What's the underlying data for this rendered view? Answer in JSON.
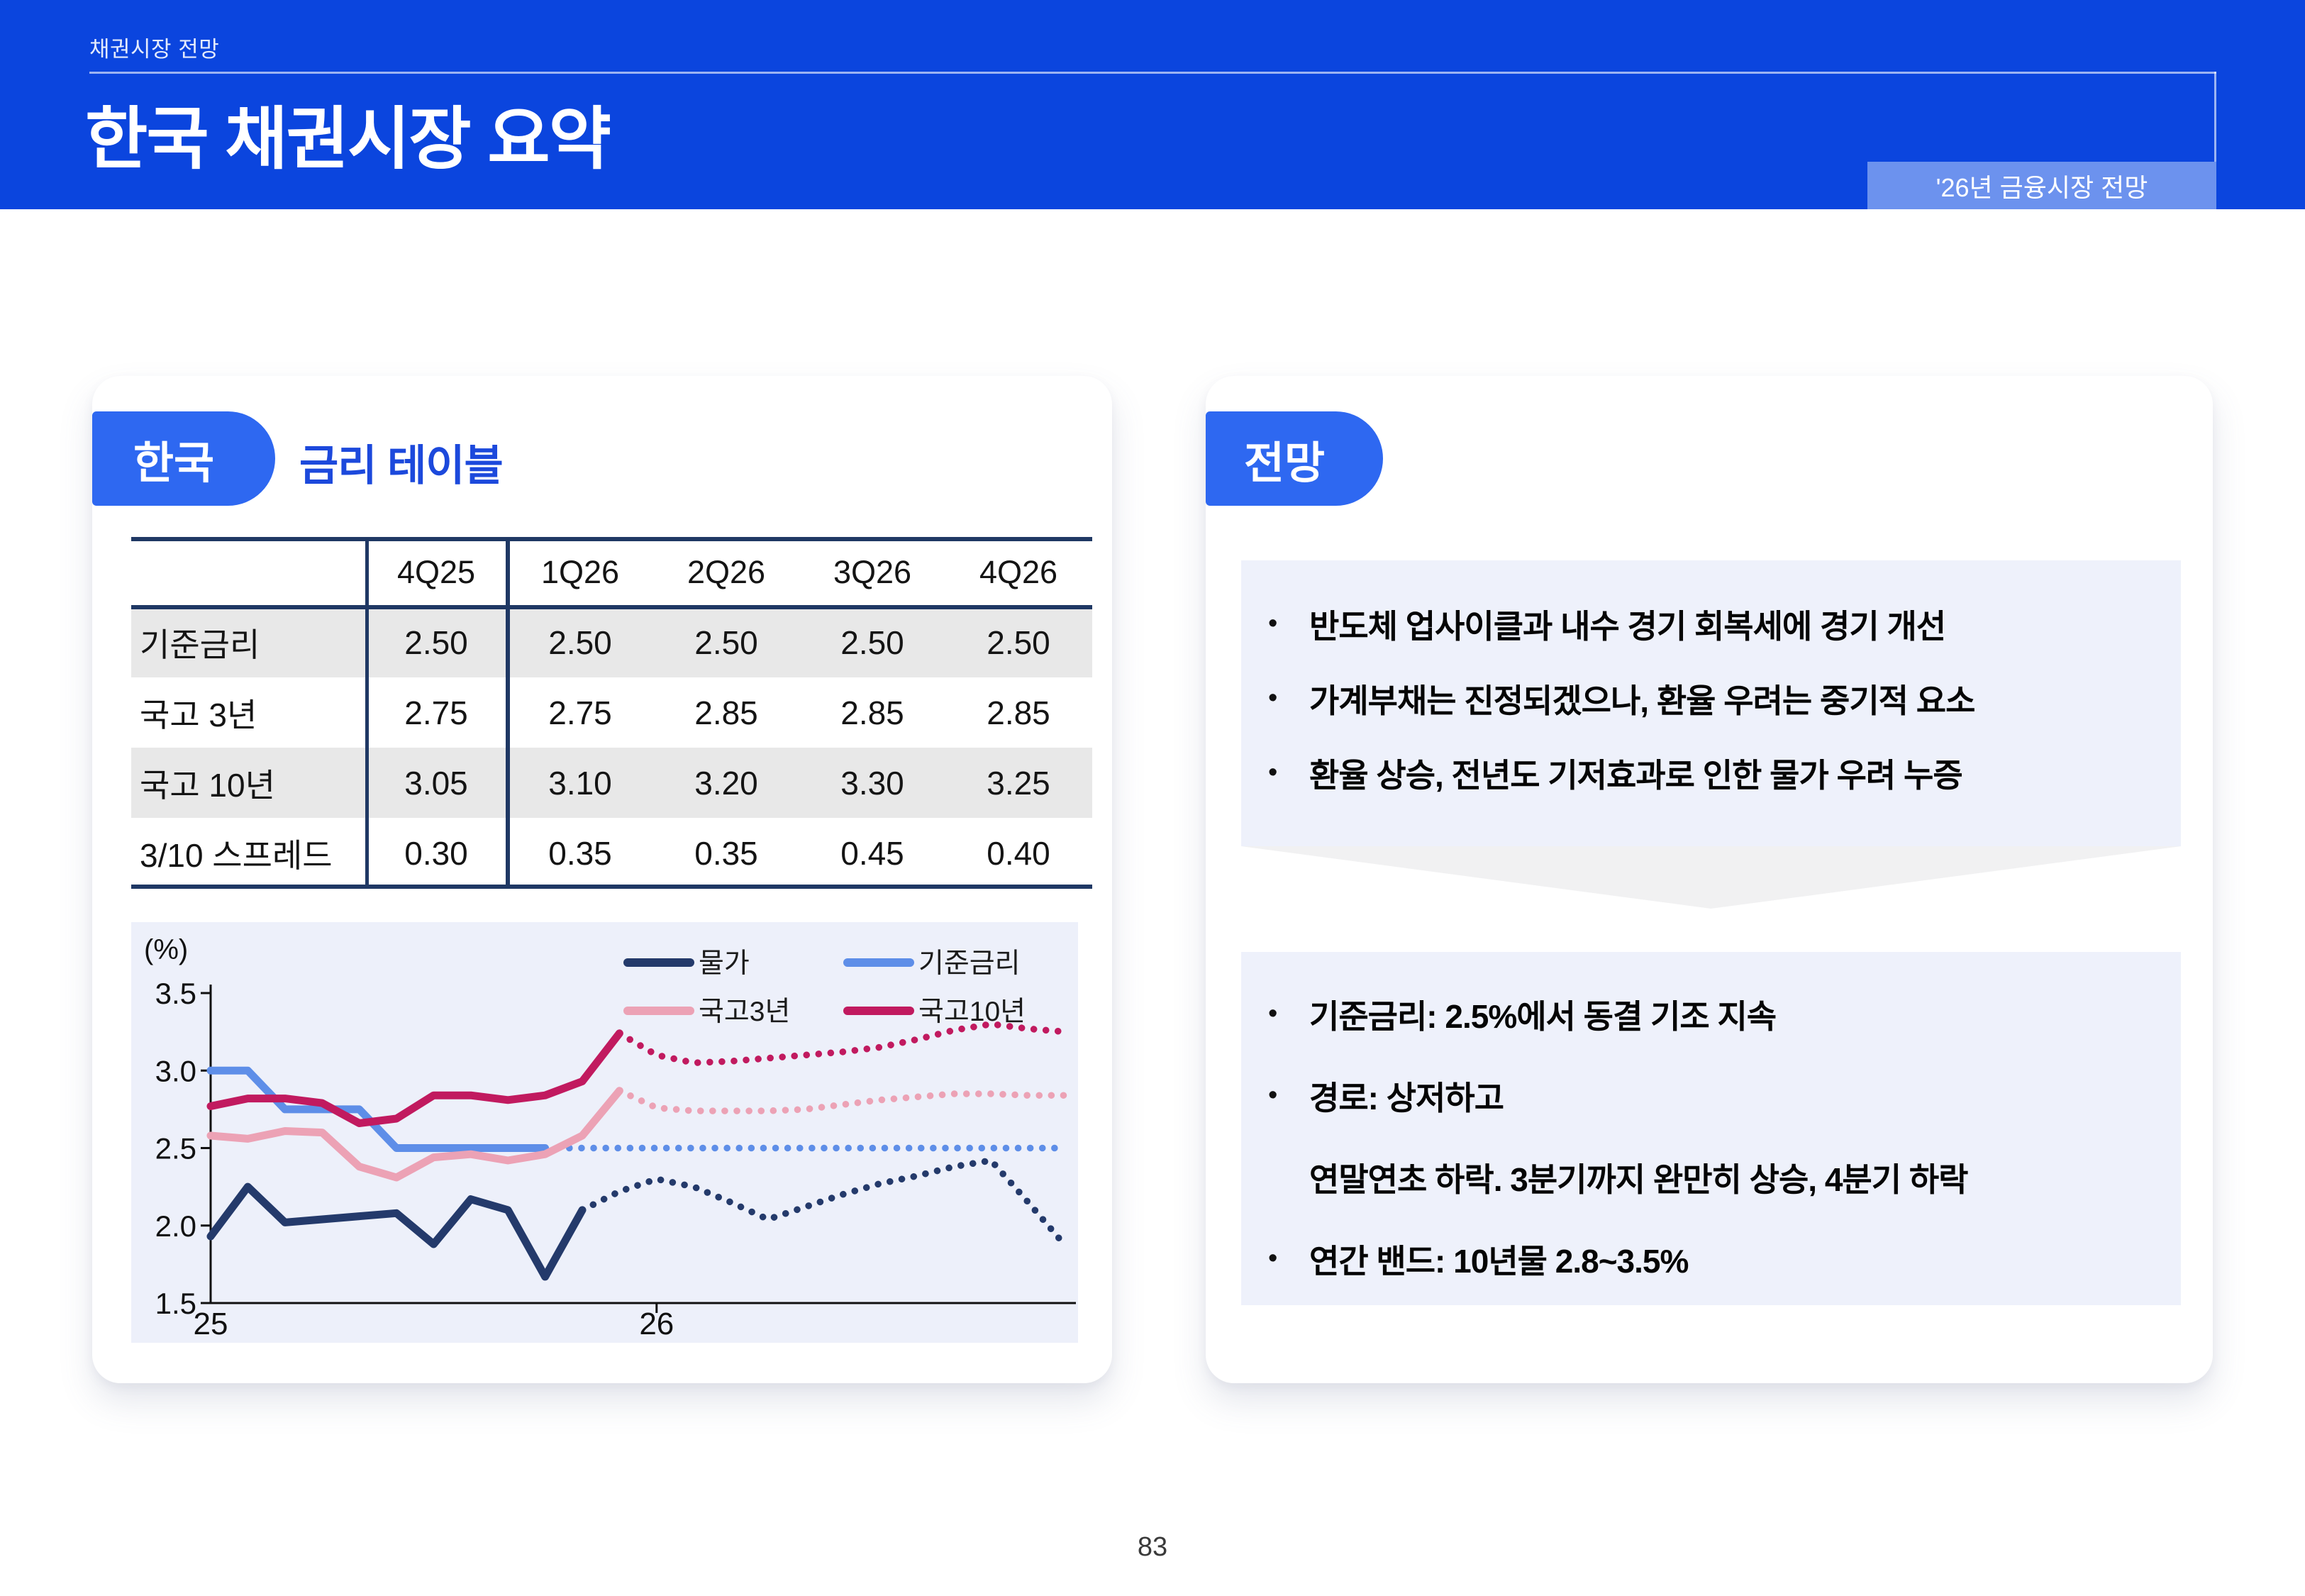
{
  "header": {
    "eyebrow": "채권시장 전망",
    "title": "한국 채권시장 요약",
    "badge": "'26년 금융시장 전망"
  },
  "left_card": {
    "tag": "한국",
    "title": "금리 테이블",
    "table": {
      "columns": [
        "",
        "4Q25",
        "1Q26",
        "2Q26",
        "3Q26",
        "4Q26"
      ],
      "rows": [
        {
          "label": "기준금리",
          "values": [
            "2.50",
            "2.50",
            "2.50",
            "2.50",
            "2.50"
          ],
          "shaded": true
        },
        {
          "label": "국고 3년",
          "values": [
            "2.75",
            "2.75",
            "2.85",
            "2.85",
            "2.85"
          ],
          "shaded": false
        },
        {
          "label": "국고 10년",
          "values": [
            "3.05",
            "3.10",
            "3.20",
            "3.30",
            "3.25"
          ],
          "shaded": true
        },
        {
          "label": "3/10 스프레드",
          "values": [
            "0.30",
            "0.35",
            "0.35",
            "0.45",
            "0.40"
          ],
          "shaded": false
        }
      ]
    }
  },
  "right_card": {
    "tag": "전망",
    "drivers_box": {
      "bullets": [
        "반도체 업사이클과 내수 경기 회복세에 경기 개선",
        "가계부채는 진정되겠으나, 환율 우려는 중기적 요소",
        "환율 상승, 전년도 기저효과로 인한 물가 우려 누증"
      ]
    },
    "forecast_box": {
      "lines": [
        {
          "bullet": true,
          "text": "기준금리: 2.5%에서 동결 기조 지속"
        },
        {
          "bullet": true,
          "text": "경로: 상저하고"
        },
        {
          "bullet": false,
          "text": "연말연초 하락. 3분기까지 완만히 상승, 4분기 하락"
        },
        {
          "bullet": true,
          "text": "연간 밴드: 10년물 2.8~3.5%"
        }
      ]
    }
  },
  "chart_data": {
    "type": "line",
    "unit_label": "(%)",
    "ylim": [
      1.5,
      3.5
    ],
    "yticks": [
      3.5,
      3.0,
      2.5,
      2.0,
      1.5
    ],
    "n_points": 24,
    "x_tick_labels": [
      "25",
      "26"
    ],
    "x_tick_positions": [
      0,
      12
    ],
    "legend_position": "top-right",
    "grid": false,
    "series": [
      {
        "name": "물가",
        "color": "#243A6B",
        "solid_until_index": 10,
        "values": [
          1.93,
          2.25,
          2.02,
          2.04,
          2.06,
          2.08,
          1.88,
          2.17,
          2.1,
          1.67,
          2.1,
          2.22,
          2.3,
          2.25,
          2.15,
          2.04,
          2.12,
          2.2,
          2.27,
          2.32,
          2.38,
          2.42,
          2.15,
          1.87
        ]
      },
      {
        "name": "기준금리",
        "color": "#5E8EE8",
        "solid_until_index": 9,
        "values": [
          3.0,
          3.0,
          2.75,
          2.75,
          2.75,
          2.5,
          2.5,
          2.5,
          2.5,
          2.5,
          2.5,
          2.5,
          2.5,
          2.5,
          2.5,
          2.5,
          2.5,
          2.5,
          2.5,
          2.5,
          2.5,
          2.5,
          2.5,
          2.5
        ]
      },
      {
        "name": "국고3년",
        "color": "#ECA2B5",
        "solid_until_index": 11,
        "values": [
          2.58,
          2.56,
          2.61,
          2.6,
          2.38,
          2.31,
          2.44,
          2.46,
          2.42,
          2.46,
          2.58,
          2.87,
          2.76,
          2.74,
          2.74,
          2.74,
          2.75,
          2.78,
          2.81,
          2.83,
          2.85,
          2.85,
          2.84,
          2.84
        ]
      },
      {
        "name": "국고10년",
        "color": "#C11A5F",
        "solid_until_index": 11,
        "values": [
          2.77,
          2.82,
          2.82,
          2.79,
          2.66,
          2.69,
          2.84,
          2.84,
          2.81,
          2.84,
          2.93,
          3.24,
          3.1,
          3.05,
          3.06,
          3.08,
          3.1,
          3.12,
          3.15,
          3.2,
          3.26,
          3.3,
          3.27,
          3.25
        ]
      }
    ]
  },
  "footer": {
    "page_number": "83"
  }
}
